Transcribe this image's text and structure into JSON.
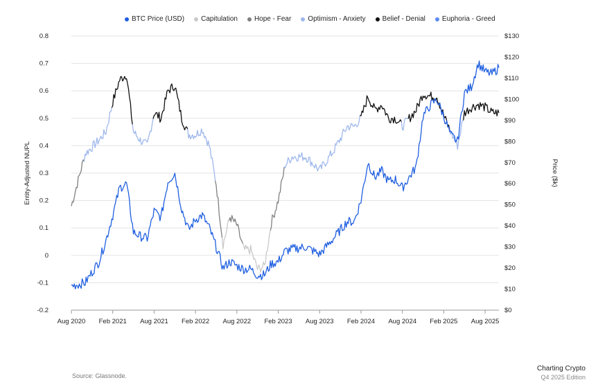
{
  "chart_data": {
    "type": "line",
    "x_ticks": [
      "Aug 2020",
      "Feb 2021",
      "Aug 2021",
      "Feb 2022",
      "Aug 2022",
      "Feb 2023",
      "Aug 2023",
      "Feb 2024",
      "Aug 2024",
      "Feb 2025",
      "Aug 2025"
    ],
    "x_range": [
      "2020-08",
      "2025-10"
    ],
    "y_left": {
      "label": "Entity-Adjusted NUPL",
      "ticks": [
        "0.8",
        "0.7",
        "0.6",
        "0.5",
        "0.4",
        "0.3",
        "0.2",
        "0.1",
        "0",
        "-0.1",
        "-0.2"
      ],
      "range": [
        -0.2,
        0.8
      ]
    },
    "y_right": {
      "label": "Price ($k)",
      "ticks": [
        "$130",
        "$120",
        "$110",
        "$100",
        "$90",
        "$80",
        "$70",
        "$60",
        "$50",
        "$40",
        "$30",
        "$20",
        "$10",
        "$0"
      ],
      "range": [
        0,
        130
      ]
    },
    "grid": true,
    "legend_position": "top",
    "legend": [
      {
        "name": "BTC Price (USD)",
        "color": "#1f5fe0"
      },
      {
        "name": "Capitulation",
        "color": "#c9c9c9"
      },
      {
        "name": "Hope - Fear",
        "color": "#808080"
      },
      {
        "name": "Optimism - Anxiety",
        "color": "#9fb8ec"
      },
      {
        "name": "Belief - Denial",
        "color": "#111111"
      },
      {
        "name": "Euphoria - Greed",
        "color": "#5c8bf0"
      }
    ],
    "series": [
      {
        "name": "BTC Price (USD)",
        "axis": "right",
        "color": "#1f5fe0",
        "x": [
          "2020-08",
          "2020-10",
          "2020-12",
          "2021-01",
          "2021-02",
          "2021-03",
          "2021-04",
          "2021-05",
          "2021-06",
          "2021-07",
          "2021-08",
          "2021-09",
          "2021-10",
          "2021-11",
          "2021-12",
          "2022-01",
          "2022-02",
          "2022-03",
          "2022-04",
          "2022-05",
          "2022-06",
          "2022-07",
          "2022-08",
          "2022-09",
          "2022-10",
          "2022-11",
          "2022-12",
          "2023-01",
          "2023-02",
          "2023-03",
          "2023-04",
          "2023-06",
          "2023-08",
          "2023-10",
          "2023-12",
          "2024-01",
          "2024-02",
          "2024-03",
          "2024-04",
          "2024-05",
          "2024-06",
          "2024-07",
          "2024-08",
          "2024-09",
          "2024-10",
          "2024-11",
          "2024-12",
          "2025-01",
          "2025-02",
          "2025-03",
          "2025-04",
          "2025-05",
          "2025-06",
          "2025-07",
          "2025-08",
          "2025-09",
          "2025-10"
        ],
        "values": [
          11.5,
          13,
          23,
          33,
          45,
          58,
          60,
          37,
          35,
          34,
          47,
          44,
          61,
          65,
          48,
          38,
          43,
          45,
          39,
          30,
          20,
          23,
          21,
          19.5,
          19.5,
          16.5,
          16.8,
          22,
          23,
          28,
          29,
          30,
          26.5,
          34,
          42,
          42,
          52,
          70,
          63,
          66,
          61,
          62,
          58,
          63,
          68,
          92,
          97,
          100,
          92,
          83,
          80,
          103,
          106,
          117,
          113,
          112,
          115
        ]
      },
      {
        "name": "Entity-Adjusted NUPL",
        "axis": "left",
        "x": [
          "2020-08",
          "2020-10",
          "2020-12",
          "2021-01",
          "2021-02",
          "2021-03",
          "2021-04",
          "2021-05",
          "2021-06",
          "2021-07",
          "2021-08",
          "2021-09",
          "2021-10",
          "2021-11",
          "2021-12",
          "2022-01",
          "2022-02",
          "2022-03",
          "2022-04",
          "2022-05",
          "2022-06",
          "2022-07",
          "2022-08",
          "2022-09",
          "2022-10",
          "2022-11",
          "2022-12",
          "2023-01",
          "2023-02",
          "2023-03",
          "2023-04",
          "2023-06",
          "2023-08",
          "2023-10",
          "2023-12",
          "2024-01",
          "2024-02",
          "2024-03",
          "2024-04",
          "2024-05",
          "2024-06",
          "2024-07",
          "2024-08",
          "2024-09",
          "2024-10",
          "2024-11",
          "2024-12",
          "2025-01",
          "2025-02",
          "2025-03",
          "2025-04",
          "2025-05",
          "2025-06",
          "2025-07",
          "2025-08",
          "2025-09",
          "2025-10"
        ],
        "values": [
          0.18,
          0.37,
          0.42,
          0.45,
          0.56,
          0.64,
          0.66,
          0.45,
          0.42,
          0.4,
          0.52,
          0.5,
          0.6,
          0.62,
          0.5,
          0.44,
          0.44,
          0.46,
          0.4,
          0.26,
          0.04,
          0.14,
          0.11,
          0.02,
          0.02,
          -0.05,
          -0.04,
          0.12,
          0.2,
          0.33,
          0.36,
          0.36,
          0.31,
          0.38,
          0.47,
          0.47,
          0.5,
          0.58,
          0.53,
          0.55,
          0.5,
          0.5,
          0.47,
          0.5,
          0.53,
          0.59,
          0.58,
          0.58,
          0.51,
          0.45,
          0.4,
          0.52,
          0.54,
          0.55,
          0.54,
          0.52,
          0.52
        ],
        "phases_by_point": [
          "Hope - Fear",
          "Optimism - Anxiety",
          "Optimism - Anxiety",
          "Optimism - Anxiety",
          "Belief - Denial",
          "Belief - Denial",
          "Belief - Denial",
          "Optimism - Anxiety",
          "Optimism - Anxiety",
          "Optimism - Anxiety",
          "Belief - Denial",
          "Belief - Denial",
          "Belief - Denial",
          "Belief - Denial",
          "Belief - Denial",
          "Optimism - Anxiety",
          "Optimism - Anxiety",
          "Optimism - Anxiety",
          "Optimism - Anxiety",
          "Hope - Fear",
          "Capitulation",
          "Hope - Fear",
          "Hope - Fear",
          "Capitulation",
          "Capitulation",
          "Capitulation",
          "Capitulation",
          "Hope - Fear",
          "Hope - Fear",
          "Optimism - Anxiety",
          "Optimism - Anxiety",
          "Optimism - Anxiety",
          "Optimism - Anxiety",
          "Optimism - Anxiety",
          "Optimism - Anxiety",
          "Optimism - Anxiety",
          "Belief - Denial",
          "Belief - Denial",
          "Belief - Denial",
          "Belief - Denial",
          "Belief - Denial",
          "Belief - Denial",
          "Optimism - Anxiety",
          "Belief - Denial",
          "Belief - Denial",
          "Belief - Denial",
          "Belief - Denial",
          "Belief - Denial",
          "Belief - Denial",
          "Optimism - Anxiety",
          "Optimism - Anxiety",
          "Belief - Denial",
          "Belief - Denial",
          "Belief - Denial",
          "Belief - Denial",
          "Belief - Denial",
          "Belief - Denial"
        ]
      }
    ]
  },
  "footer": {
    "source": "Source: Glassnode.",
    "brand_line1": "Charting Crypto",
    "brand_line2": "Q4 2025 Edition"
  }
}
